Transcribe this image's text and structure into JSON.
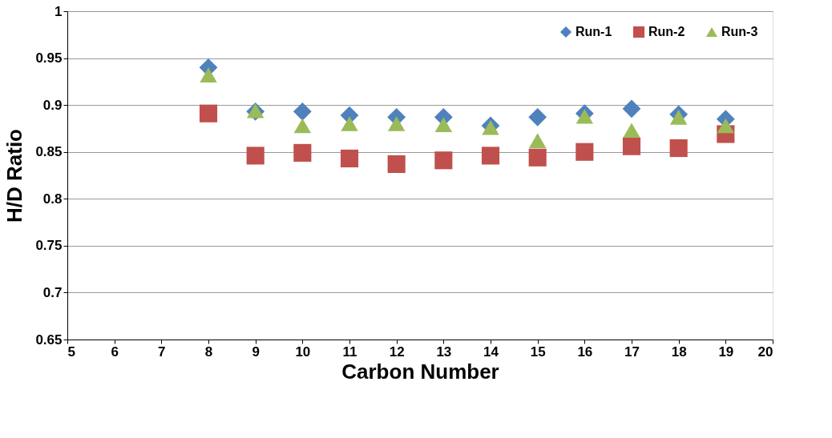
{
  "chart_data": {
    "type": "scatter",
    "xlabel": "Carbon Number",
    "ylabel": "H/D Ratio",
    "x": [
      8,
      9,
      10,
      11,
      12,
      13,
      14,
      15,
      16,
      17,
      18,
      19
    ],
    "series": [
      {
        "name": "Run-1",
        "color": "#4f81bd",
        "marker": "diamond",
        "values": [
          0.94,
          0.893,
          0.893,
          0.889,
          0.887,
          0.887,
          0.878,
          0.887,
          0.891,
          0.896,
          0.89,
          0.885
        ]
      },
      {
        "name": "Run-2",
        "color": "#c0504d",
        "marker": "square",
        "values": [
          0.891,
          0.846,
          0.849,
          0.843,
          0.837,
          0.841,
          0.846,
          0.844,
          0.85,
          0.856,
          0.854,
          0.869
        ]
      },
      {
        "name": "Run-3",
        "color": "#9bbb59",
        "marker": "triangle",
        "values": [
          0.932,
          0.894,
          0.878,
          0.88,
          0.88,
          0.879,
          0.876,
          0.862,
          0.888,
          0.873,
          0.887,
          0.878
        ]
      }
    ],
    "xlim": [
      5,
      20
    ],
    "xticks": [
      5,
      6,
      7,
      8,
      9,
      10,
      11,
      12,
      13,
      14,
      15,
      16,
      17,
      18,
      19,
      20
    ],
    "ylim": [
      0.65,
      1
    ],
    "yticks": [
      0.65,
      0.7,
      0.75,
      0.8,
      0.85,
      0.9,
      0.95,
      1
    ],
    "grid": "y",
    "legend": "top right"
  }
}
